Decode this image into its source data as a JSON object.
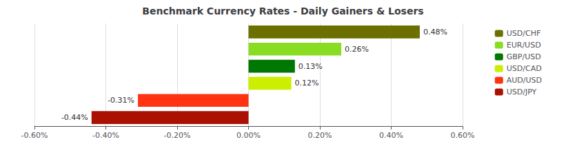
{
  "chart_data": {
    "type": "bar",
    "orientation": "horizontal",
    "title": "Benchmark Currency Rates - Daily Gainers & Losers",
    "categories": [
      "USD/JPY",
      "AUD/USD",
      "USD/CAD",
      "GBP/USD",
      "EUR/USD",
      "USD/CHF"
    ],
    "values": [
      -0.0044,
      -0.0031,
      0.0012,
      0.0013,
      0.0026,
      0.0048
    ],
    "value_labels": [
      "-0.44%",
      "-0.31%",
      "0.12%",
      "0.13%",
      "0.26%",
      "0.48%"
    ],
    "colors": [
      "#aa1100",
      "#ff3311",
      "#ccee00",
      "#007700",
      "#88dd22",
      "#6b7000"
    ],
    "data_labels": true,
    "xlim": [
      -0.006,
      0.006
    ],
    "xticks": [
      {
        "value": -0.006,
        "label": "-0.60%"
      },
      {
        "value": -0.004,
        "label": "-0.40%"
      },
      {
        "value": -0.002,
        "label": "-0.20%"
      },
      {
        "value": 0.0,
        "label": "0.00%"
      },
      {
        "value": 0.002,
        "label": "0.20%"
      },
      {
        "value": 0.004,
        "label": "0.40%"
      },
      {
        "value": 0.006,
        "label": "0.60%"
      }
    ],
    "grid": true,
    "tick_labels": "x",
    "legend": "upper right"
  }
}
